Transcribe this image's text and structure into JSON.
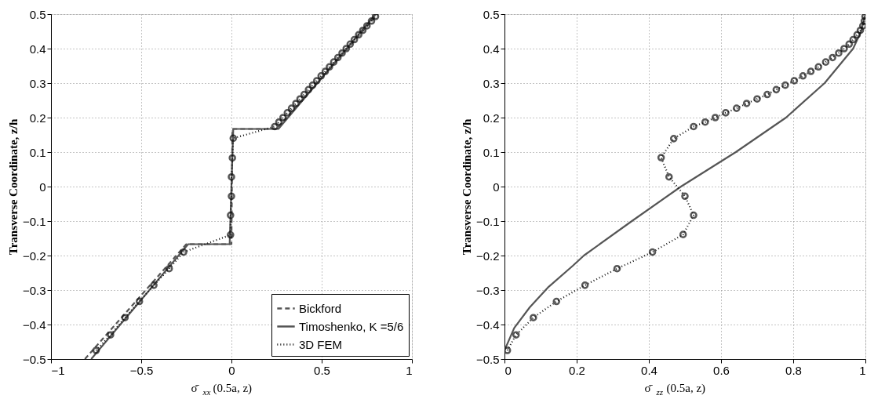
{
  "chart_data": [
    {
      "type": "line",
      "xlabel": "σ̄$_{xx}$ (0.5a, z)",
      "ylabel": "Transverse Coordinate,  z/h",
      "xlim": [
        -1,
        1
      ],
      "xticks": [
        -1,
        -0.5,
        0,
        0.5,
        1
      ],
      "ylim": [
        -0.5,
        0.5
      ],
      "yticks": [
        -0.5,
        -0.4,
        -0.3,
        -0.2,
        -0.1,
        0,
        0.1,
        0.2,
        0.3,
        0.4,
        0.5
      ],
      "grid": true,
      "legend": "bottom right",
      "series": [
        {
          "name": "Bickford",
          "color": "#555555",
          "line_style": "dashed",
          "marker": "none",
          "x": [
            -0.812,
            -0.25,
            0,
            0.005,
            0.25,
            0.81
          ],
          "values": [
            -0.5,
            -0.167,
            -0.167,
            0.167,
            0.167,
            0.5
          ]
        },
        {
          "name": "Timoshenko, K =5/6",
          "color": "#555555",
          "line_style": "solid",
          "marker": "none",
          "x": [
            -0.777,
            -0.24,
            -0.01,
            0.01,
            0.26,
            0.8
          ],
          "values": [
            -0.5,
            -0.167,
            -0.167,
            0.167,
            0.167,
            0.5
          ]
        },
        {
          "name": "3D FEM",
          "color": "#111111",
          "line_style": "dotted",
          "marker": "circle",
          "x": [
            -0.75,
            -0.67,
            -0.59,
            -0.51,
            -0.43,
            -0.345,
            -0.265,
            -0.005,
            -0.005,
            0,
            0,
            0.005,
            0.01,
            0.24,
            0.263,
            0.286,
            0.31,
            0.333,
            0.357,
            0.38,
            0.403,
            0.427,
            0.45,
            0.473,
            0.497,
            0.52,
            0.543,
            0.567,
            0.59,
            0.613,
            0.636,
            0.658,
            0.681,
            0.705,
            0.728,
            0.751,
            0.776,
            0.798
          ],
          "values": [
            -0.475,
            -0.43,
            -0.38,
            -0.333,
            -0.286,
            -0.238,
            -0.19,
            -0.14,
            -0.083,
            -0.028,
            0.028,
            0.083,
            0.14,
            0.174,
            0.187,
            0.2,
            0.214,
            0.227,
            0.241,
            0.254,
            0.267,
            0.281,
            0.294,
            0.307,
            0.321,
            0.334,
            0.347,
            0.361,
            0.374,
            0.387,
            0.4,
            0.413,
            0.426,
            0.44,
            0.453,
            0.466,
            0.48,
            0.493
          ]
        }
      ]
    },
    {
      "type": "line",
      "xlabel": "σ̄$_{zz}$ (0.5a, z)",
      "ylabel": "Transverse Coordinate,  z/h",
      "xlim": [
        0,
        1
      ],
      "xticks": [
        0,
        0.2,
        0.4,
        0.6,
        0.8,
        1
      ],
      "ylim": [
        -0.5,
        0.5
      ],
      "yticks": [
        -0.5,
        -0.4,
        -0.3,
        -0.2,
        -0.1,
        0,
        0.1,
        0.2,
        0.3,
        0.4,
        0.5
      ],
      "grid": true,
      "legend": false,
      "series": [
        {
          "color": "#555555",
          "line_style": "solid",
          "marker": "none",
          "x": [
            0,
            0.027,
            0.07,
            0.12,
            0.19,
            0.22,
            0.353,
            0.489,
            0.641,
            0.78,
            0.887,
            0.966,
            0.988,
            1
          ],
          "values": [
            -0.475,
            -0.41,
            -0.35,
            -0.293,
            -0.229,
            -0.2,
            -0.1,
            0,
            0.1,
            0.2,
            0.3,
            0.4,
            0.45,
            0.5
          ]
        },
        {
          "color": "#111111",
          "line_style": "dotted",
          "marker": "circle",
          "x": [
            0.008,
            0.032,
            0.08,
            0.144,
            0.223,
            0.312,
            0.41,
            0.495,
            0.524,
            0.5,
            0.456,
            0.434,
            0.469,
            0.524,
            0.556,
            0.584,
            0.613,
            0.643,
            0.671,
            0.7,
            0.728,
            0.753,
            0.778,
            0.803,
            0.827,
            0.849,
            0.87,
            0.89,
            0.909,
            0.926,
            0.941,
            0.955,
            0.966,
            0.977,
            0.986,
            0.993,
            0.997,
            0.999
          ],
          "values": [
            -0.475,
            -0.43,
            -0.38,
            -0.333,
            -0.286,
            -0.238,
            -0.19,
            -0.139,
            -0.083,
            -0.028,
            0.028,
            0.084,
            0.139,
            0.174,
            0.187,
            0.2,
            0.214,
            0.227,
            0.241,
            0.254,
            0.267,
            0.281,
            0.294,
            0.307,
            0.321,
            0.334,
            0.347,
            0.361,
            0.374,
            0.387,
            0.4,
            0.413,
            0.426,
            0.44,
            0.453,
            0.466,
            0.48,
            0.493
          ]
        }
      ]
    }
  ]
}
